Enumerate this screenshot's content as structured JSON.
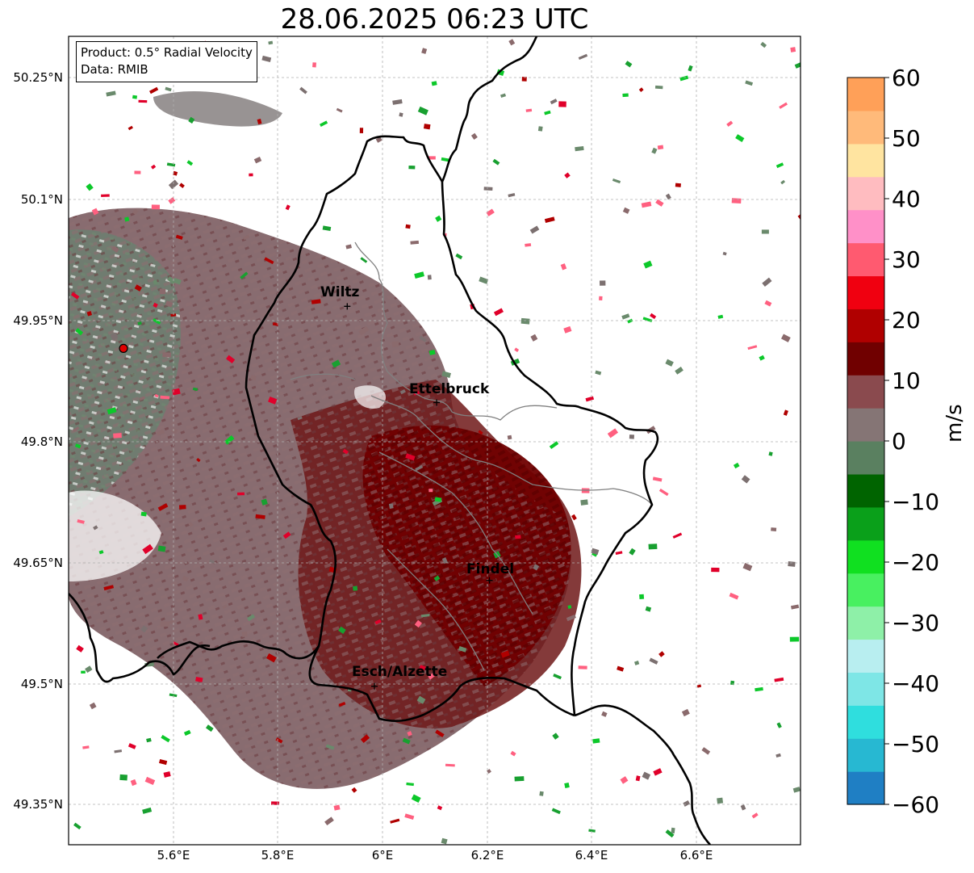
{
  "title": "28.06.2025 06:23 UTC",
  "info_box": {
    "product": "Product: 0.5° Radial Velocity",
    "data": "Data: RMIB"
  },
  "map": {
    "lat_ticks": [
      "50.25°N",
      "50.1°N",
      "49.95°N",
      "49.8°N",
      "49.65°N",
      "49.5°N",
      "49.35°N"
    ],
    "lon_ticks": [
      "5.6°E",
      "5.8°E",
      "6°E",
      "6.2°E",
      "6.4°E",
      "6.6°E"
    ],
    "extent": {
      "lon": [
        5.4,
        6.8
      ],
      "lat": [
        49.3,
        50.3
      ]
    },
    "gridlines": true,
    "radar_site": {
      "lon": 5.505,
      "lat": 49.914
    },
    "cities": [
      {
        "name": "Wiltz",
        "lon": 5.933,
        "lat": 49.966
      },
      {
        "name": "Ettelbruck",
        "lon": 6.104,
        "lat": 49.847
      },
      {
        "name": "Findel",
        "lon": 6.205,
        "lat": 49.627
      },
      {
        "name": "Esch/Alzette",
        "lon": 5.985,
        "lat": 49.496
      }
    ]
  },
  "colorbar": {
    "label": "m/s",
    "ticks": [
      "60",
      "50",
      "40",
      "30",
      "20",
      "10",
      "0",
      "−10",
      "−20",
      "−30",
      "−40",
      "−50",
      "−60"
    ],
    "range": [
      -60,
      60
    ],
    "colors": [
      "#1f7fc4",
      "#27b8d2",
      "#2fdede",
      "#7ee6e6",
      "#b8eef0",
      "#8ef0a8",
      "#48f060",
      "#10e020",
      "#0aa01a",
      "#006400",
      "#5a8060",
      "#857575",
      "#8a4a4e",
      "#700000",
      "#b00000",
      "#f00010",
      "#ff5a70",
      "#ff90c8",
      "#ffbcc0",
      "#ffe4a0",
      "#ffba7a",
      "#ffa058"
    ]
  },
  "colors": {
    "border": "#000000",
    "river": "#808080",
    "inbound": "#700000",
    "outbound": "#1a9a2a",
    "near_zero": "#7e5a5c",
    "radar_marker": "#e00000"
  }
}
